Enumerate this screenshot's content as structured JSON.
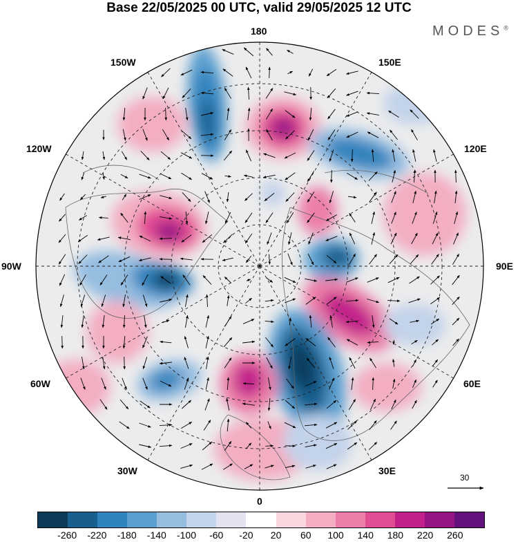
{
  "title": "Base 22/05/2025 00 UTC, valid 29/05/2025 12 UTC",
  "brand": "MODES",
  "brand_mark": "®",
  "longitude_labels": {
    "lon_180": "180",
    "lon_150w": "150W",
    "lon_150e": "150E",
    "lon_120w": "120W",
    "lon_120e": "120E",
    "lon_90w": "90W",
    "lon_90e": "90E",
    "lon_60w": "60W",
    "lon_60e": "60E",
    "lon_30w": "30W",
    "lon_30e": "30E",
    "lon_0": "0"
  },
  "vector_reference": {
    "label": "30"
  },
  "colorbar": {
    "ticks": [
      "-260",
      "-220",
      "-180",
      "-140",
      "-100",
      "-60",
      "-20",
      "20",
      "60",
      "100",
      "140",
      "180",
      "220",
      "260"
    ],
    "colors": [
      "#0b3a5a",
      "#195f8e",
      "#3083bd",
      "#5b9fd0",
      "#95bde0",
      "#c2d3ea",
      "#e3e2f0",
      "#ffffff",
      "#f9d6dd",
      "#f3aec2",
      "#ec7fa9",
      "#e24c93",
      "#c2208a",
      "#961484",
      "#63117d"
    ]
  }
}
